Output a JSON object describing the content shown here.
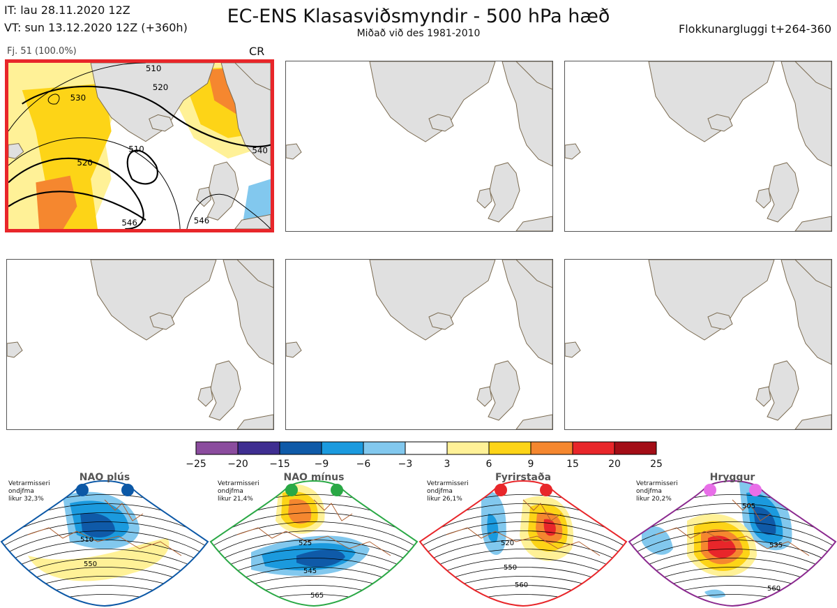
{
  "header": {
    "it_line": "IT: lau 28.11.2020 12Z",
    "vt_line": "VT: sun 13.12.2020 12Z  (+360h)",
    "title": "EC-ENS Klasasviðsmyndir - 500 hPa hæð",
    "subtitle": "Miðað við des 1981-2010",
    "window": "Flokkunargluggi t+264-360"
  },
  "cluster_panel": {
    "label": "Fj. 51 (100.0%)",
    "regime_code": "CR",
    "contour_labels": [
      "510",
      "520",
      "530",
      "520",
      "510",
      "546",
      "546",
      "540"
    ]
  },
  "colorbar": {
    "ticks": [
      "−25",
      "−20",
      "−15",
      "−9",
      "−6",
      "−3",
      "3",
      "6",
      "9",
      "15",
      "20",
      "25"
    ],
    "colors": [
      "#8b4c9e",
      "#3f2e91",
      "#0f5aa8",
      "#1b9ade",
      "#82c8ee",
      "#ffffff",
      "#fff197",
      "#fdd417",
      "#f5872f",
      "#e8262a",
      "#a30d16"
    ]
  },
  "regimes": [
    {
      "name": "NAO plús",
      "note1": "Vetrarmisseri",
      "note2": "ondjfma",
      "note3": "likur 32,3%",
      "color": "#0c58a6",
      "dot": "#0c58a6",
      "labels": [
        "510",
        "550"
      ]
    },
    {
      "name": "NAO mínus",
      "note1": "Vetrarmisseri",
      "note2": "ondjfma",
      "note3": "likur 21,4%",
      "color": "#2aa845",
      "dot": "#2aa845",
      "labels": [
        "525",
        "545",
        "565"
      ]
    },
    {
      "name": "Fyrirstaða",
      "note1": "Vetrarmisseri",
      "note2": "ondjfma",
      "note3": "likur 26,1%",
      "color": "#e8262a",
      "dot": "#e8262a",
      "labels": [
        "520",
        "550",
        "560"
      ]
    },
    {
      "name": "Hryggur",
      "note1": "Vetrarmisseri",
      "note2": "ondjfma",
      "note3": "likur 20,2%",
      "color": "#8b2a8f",
      "dot": "#e86ee8",
      "labels": [
        "505",
        "535",
        "560"
      ]
    }
  ]
}
